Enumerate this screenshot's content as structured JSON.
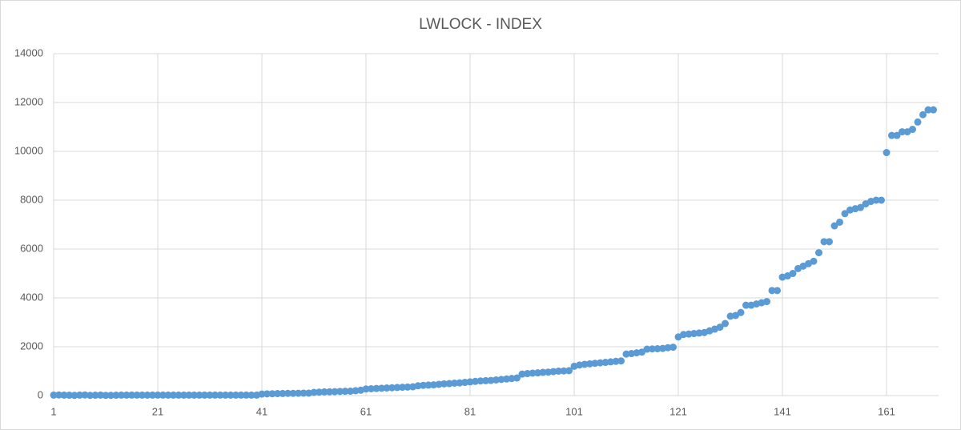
{
  "chart_data": {
    "type": "scatter",
    "title": "LWLOCK - INDEX",
    "x": [
      1,
      2,
      3,
      4,
      5,
      6,
      7,
      8,
      9,
      10,
      11,
      12,
      13,
      14,
      15,
      16,
      17,
      18,
      19,
      20,
      21,
      22,
      23,
      24,
      25,
      26,
      27,
      28,
      29,
      30,
      31,
      32,
      33,
      34,
      35,
      36,
      37,
      38,
      39,
      40,
      41,
      42,
      43,
      44,
      45,
      46,
      47,
      48,
      49,
      50,
      51,
      52,
      53,
      54,
      55,
      56,
      57,
      58,
      59,
      60,
      61,
      62,
      63,
      64,
      65,
      66,
      67,
      68,
      69,
      70,
      71,
      72,
      73,
      74,
      75,
      76,
      77,
      78,
      79,
      80,
      81,
      82,
      83,
      84,
      85,
      86,
      87,
      88,
      89,
      90,
      91,
      92,
      93,
      94,
      95,
      96,
      97,
      98,
      99,
      100,
      101,
      102,
      103,
      104,
      105,
      106,
      107,
      108,
      109,
      110,
      111,
      112,
      113,
      114,
      115,
      116,
      117,
      118,
      119,
      120,
      121,
      122,
      123,
      124,
      125,
      126,
      127,
      128,
      129,
      130,
      131,
      132,
      133,
      134,
      135,
      136,
      137,
      138,
      139,
      140,
      141,
      142,
      143,
      144,
      145,
      146,
      147,
      148,
      149,
      150,
      151,
      152,
      153,
      154,
      155,
      156,
      157,
      158,
      159,
      160,
      161,
      162,
      163,
      164,
      165,
      166,
      167,
      168,
      169,
      170
    ],
    "series": [
      {
        "color": "#5b9bd5",
        "values": [
          20,
          25,
          20,
          15,
          10,
          20,
          25,
          10,
          15,
          20,
          10,
          10,
          15,
          20,
          20,
          20,
          20,
          20,
          20,
          20,
          20,
          20,
          20,
          20,
          20,
          20,
          20,
          20,
          20,
          20,
          20,
          20,
          20,
          20,
          20,
          20,
          20,
          20,
          20,
          20,
          60,
          70,
          75,
          80,
          85,
          90,
          90,
          95,
          100,
          100,
          130,
          140,
          150,
          155,
          160,
          170,
          175,
          180,
          200,
          220,
          270,
          280,
          290,
          300,
          310,
          320,
          330,
          340,
          350,
          360,
          400,
          420,
          430,
          440,
          460,
          480,
          490,
          510,
          520,
          540,
          560,
          580,
          600,
          610,
          620,
          640,
          660,
          680,
          700,
          720,
          880,
          900,
          920,
          930,
          950,
          960,
          980,
          1000,
          1010,
          1020,
          1200,
          1250,
          1280,
          1300,
          1320,
          1340,
          1360,
          1380,
          1400,
          1420,
          1700,
          1720,
          1750,
          1780,
          1900,
          1910,
          1920,
          1930,
          1960,
          1980,
          2400,
          2500,
          2520,
          2540,
          2560,
          2580,
          2650,
          2720,
          2800,
          2950,
          3250,
          3280,
          3400,
          3700,
          3700,
          3750,
          3800,
          3850,
          4300,
          4300,
          4850,
          4900,
          5000,
          5200,
          5300,
          5400,
          5500,
          5850,
          6300,
          6300,
          6950,
          7100,
          7450,
          7600,
          7650,
          7700,
          7850,
          7950,
          8000,
          8000,
          9950,
          10650,
          10650,
          10800,
          10800,
          10900,
          11200,
          11500,
          11700,
          11700
        ]
      }
    ],
    "xlim": [
      1,
      171
    ],
    "xticks": [
      1,
      21,
      41,
      61,
      81,
      101,
      121,
      141,
      161
    ],
    "ylim": [
      0,
      14000
    ],
    "yticks": [
      0,
      2000,
      4000,
      6000,
      8000,
      10000,
      12000,
      14000
    ],
    "grid": true
  }
}
